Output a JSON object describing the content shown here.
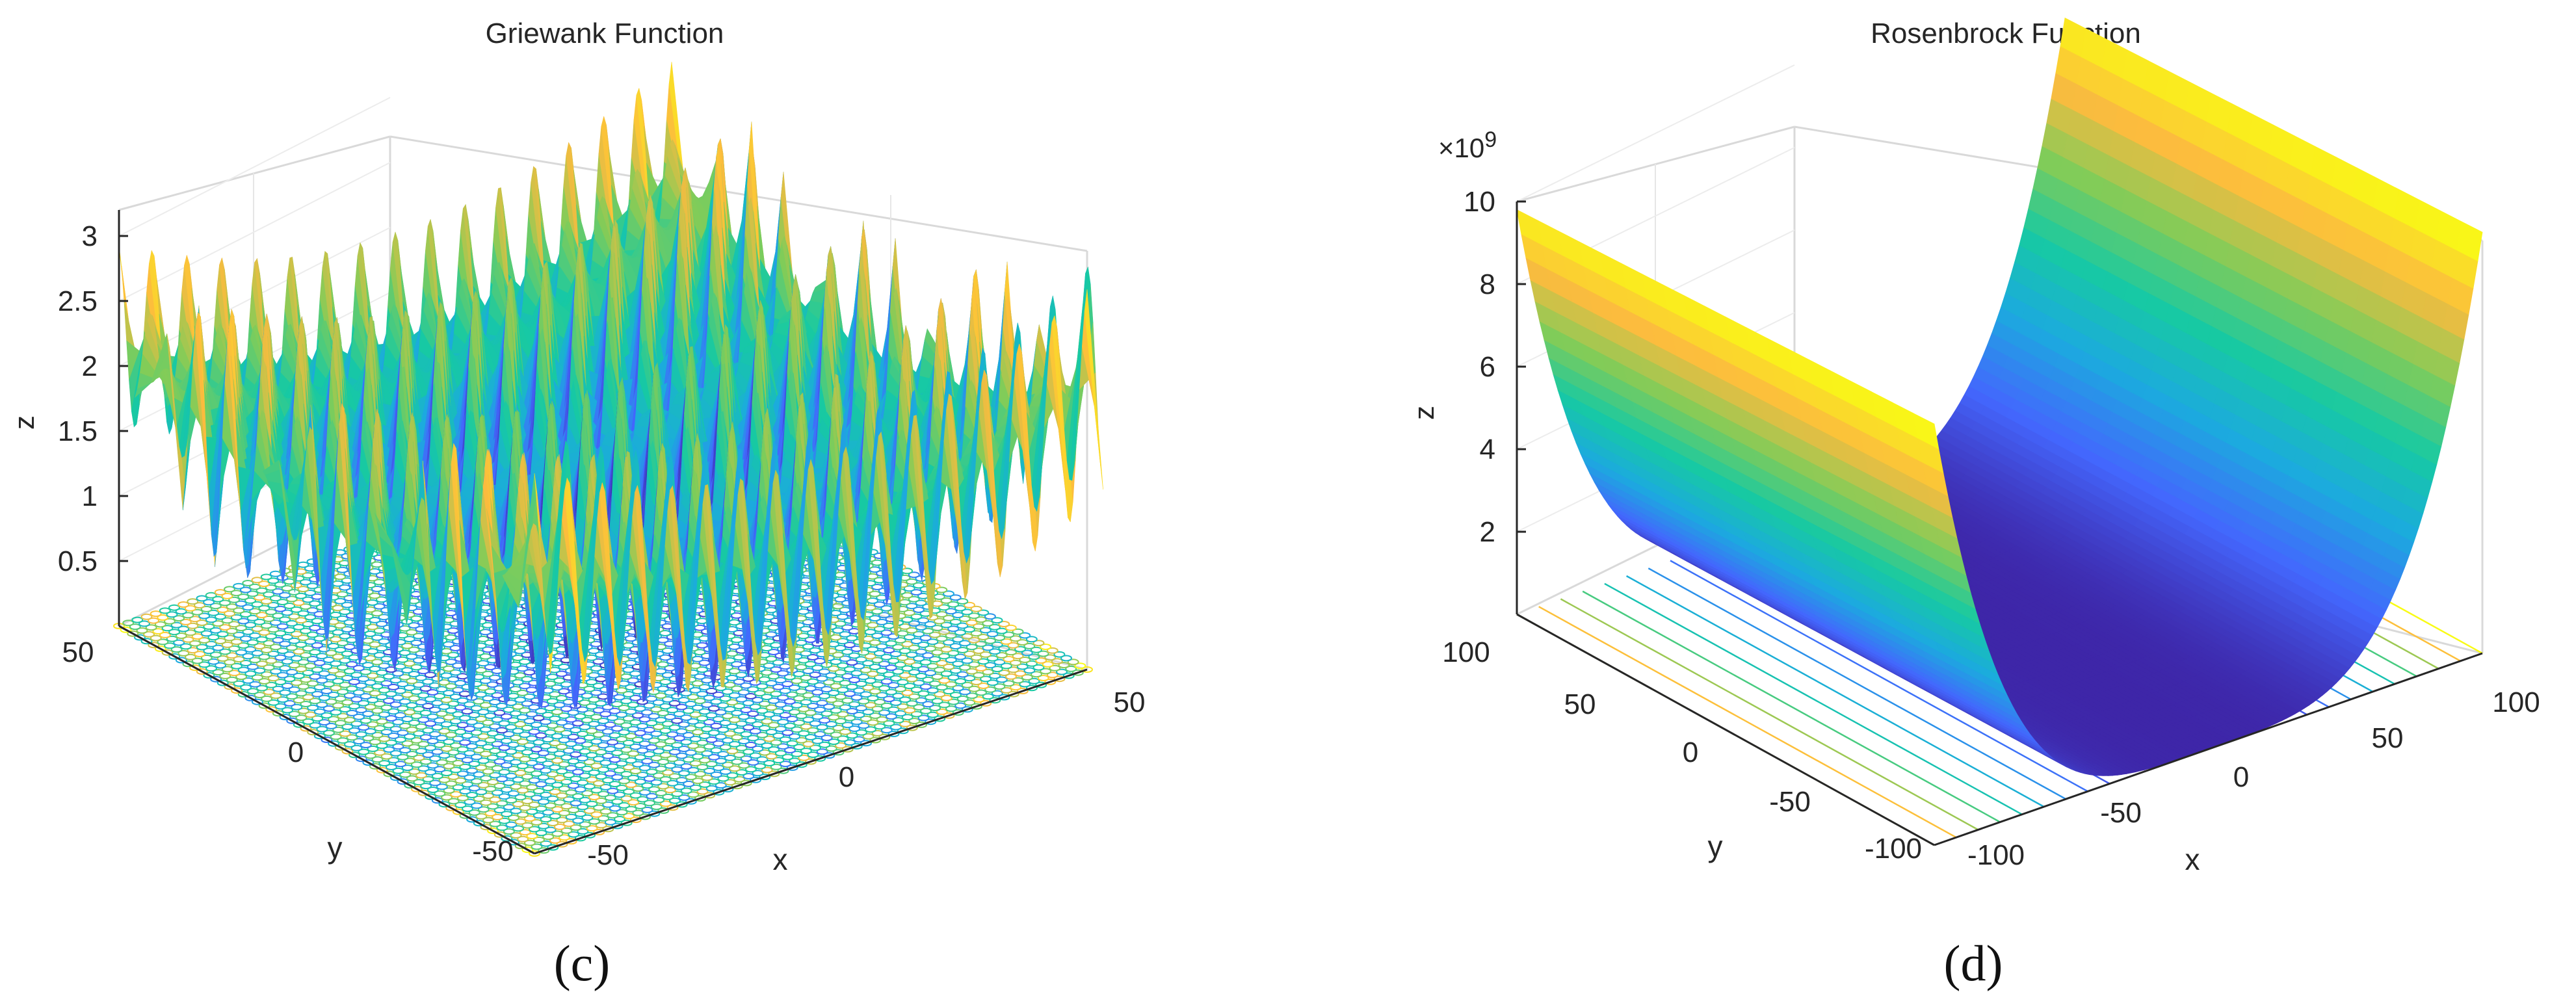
{
  "chart_data": [
    {
      "type": "surface3d",
      "function": "griewank",
      "title": "Griewank Function",
      "panel_label": "(c)",
      "xlabel": "x",
      "ylabel": "y",
      "zlabel": "z",
      "xlim": [
        -50,
        50
      ],
      "ylim": [
        -50,
        50
      ],
      "zlim": [
        0,
        3.2
      ],
      "x_ticks": [
        "-50",
        "0",
        "50"
      ],
      "y_ticks": [
        "-50",
        "0",
        "50"
      ],
      "z_ticks": [
        "0.5",
        "1",
        "1.5",
        "2",
        "2.5",
        "3"
      ],
      "z_tick_values": [
        0.5,
        1,
        1.5,
        2,
        2.5,
        3
      ],
      "z_range_surface": [
        0,
        3.1
      ],
      "contour_projection": true,
      "grid": true,
      "colormap": "parula"
    },
    {
      "type": "surface3d",
      "function": "rosenbrock",
      "title": "Rosenbrock Function",
      "panel_label": "(d)",
      "xlabel": "x",
      "ylabel": "y",
      "zlabel": "z",
      "z_exponent": "×10",
      "z_exponent_power": "9",
      "xlim": [
        -100,
        100
      ],
      "ylim": [
        -100,
        100
      ],
      "zlim": [
        0,
        10
      ],
      "x_ticks": [
        "-100",
        "-50",
        "0",
        "50",
        "100"
      ],
      "y_ticks": [
        "-100",
        "-50",
        "0",
        "50",
        "100"
      ],
      "z_ticks": [
        "2",
        "4",
        "6",
        "8",
        "10"
      ],
      "z_tick_values": [
        2,
        4,
        6,
        8,
        10
      ],
      "z_range_surface": [
        0,
        10
      ],
      "contour_projection": true,
      "grid": true,
      "colormap": "parula"
    }
  ]
}
